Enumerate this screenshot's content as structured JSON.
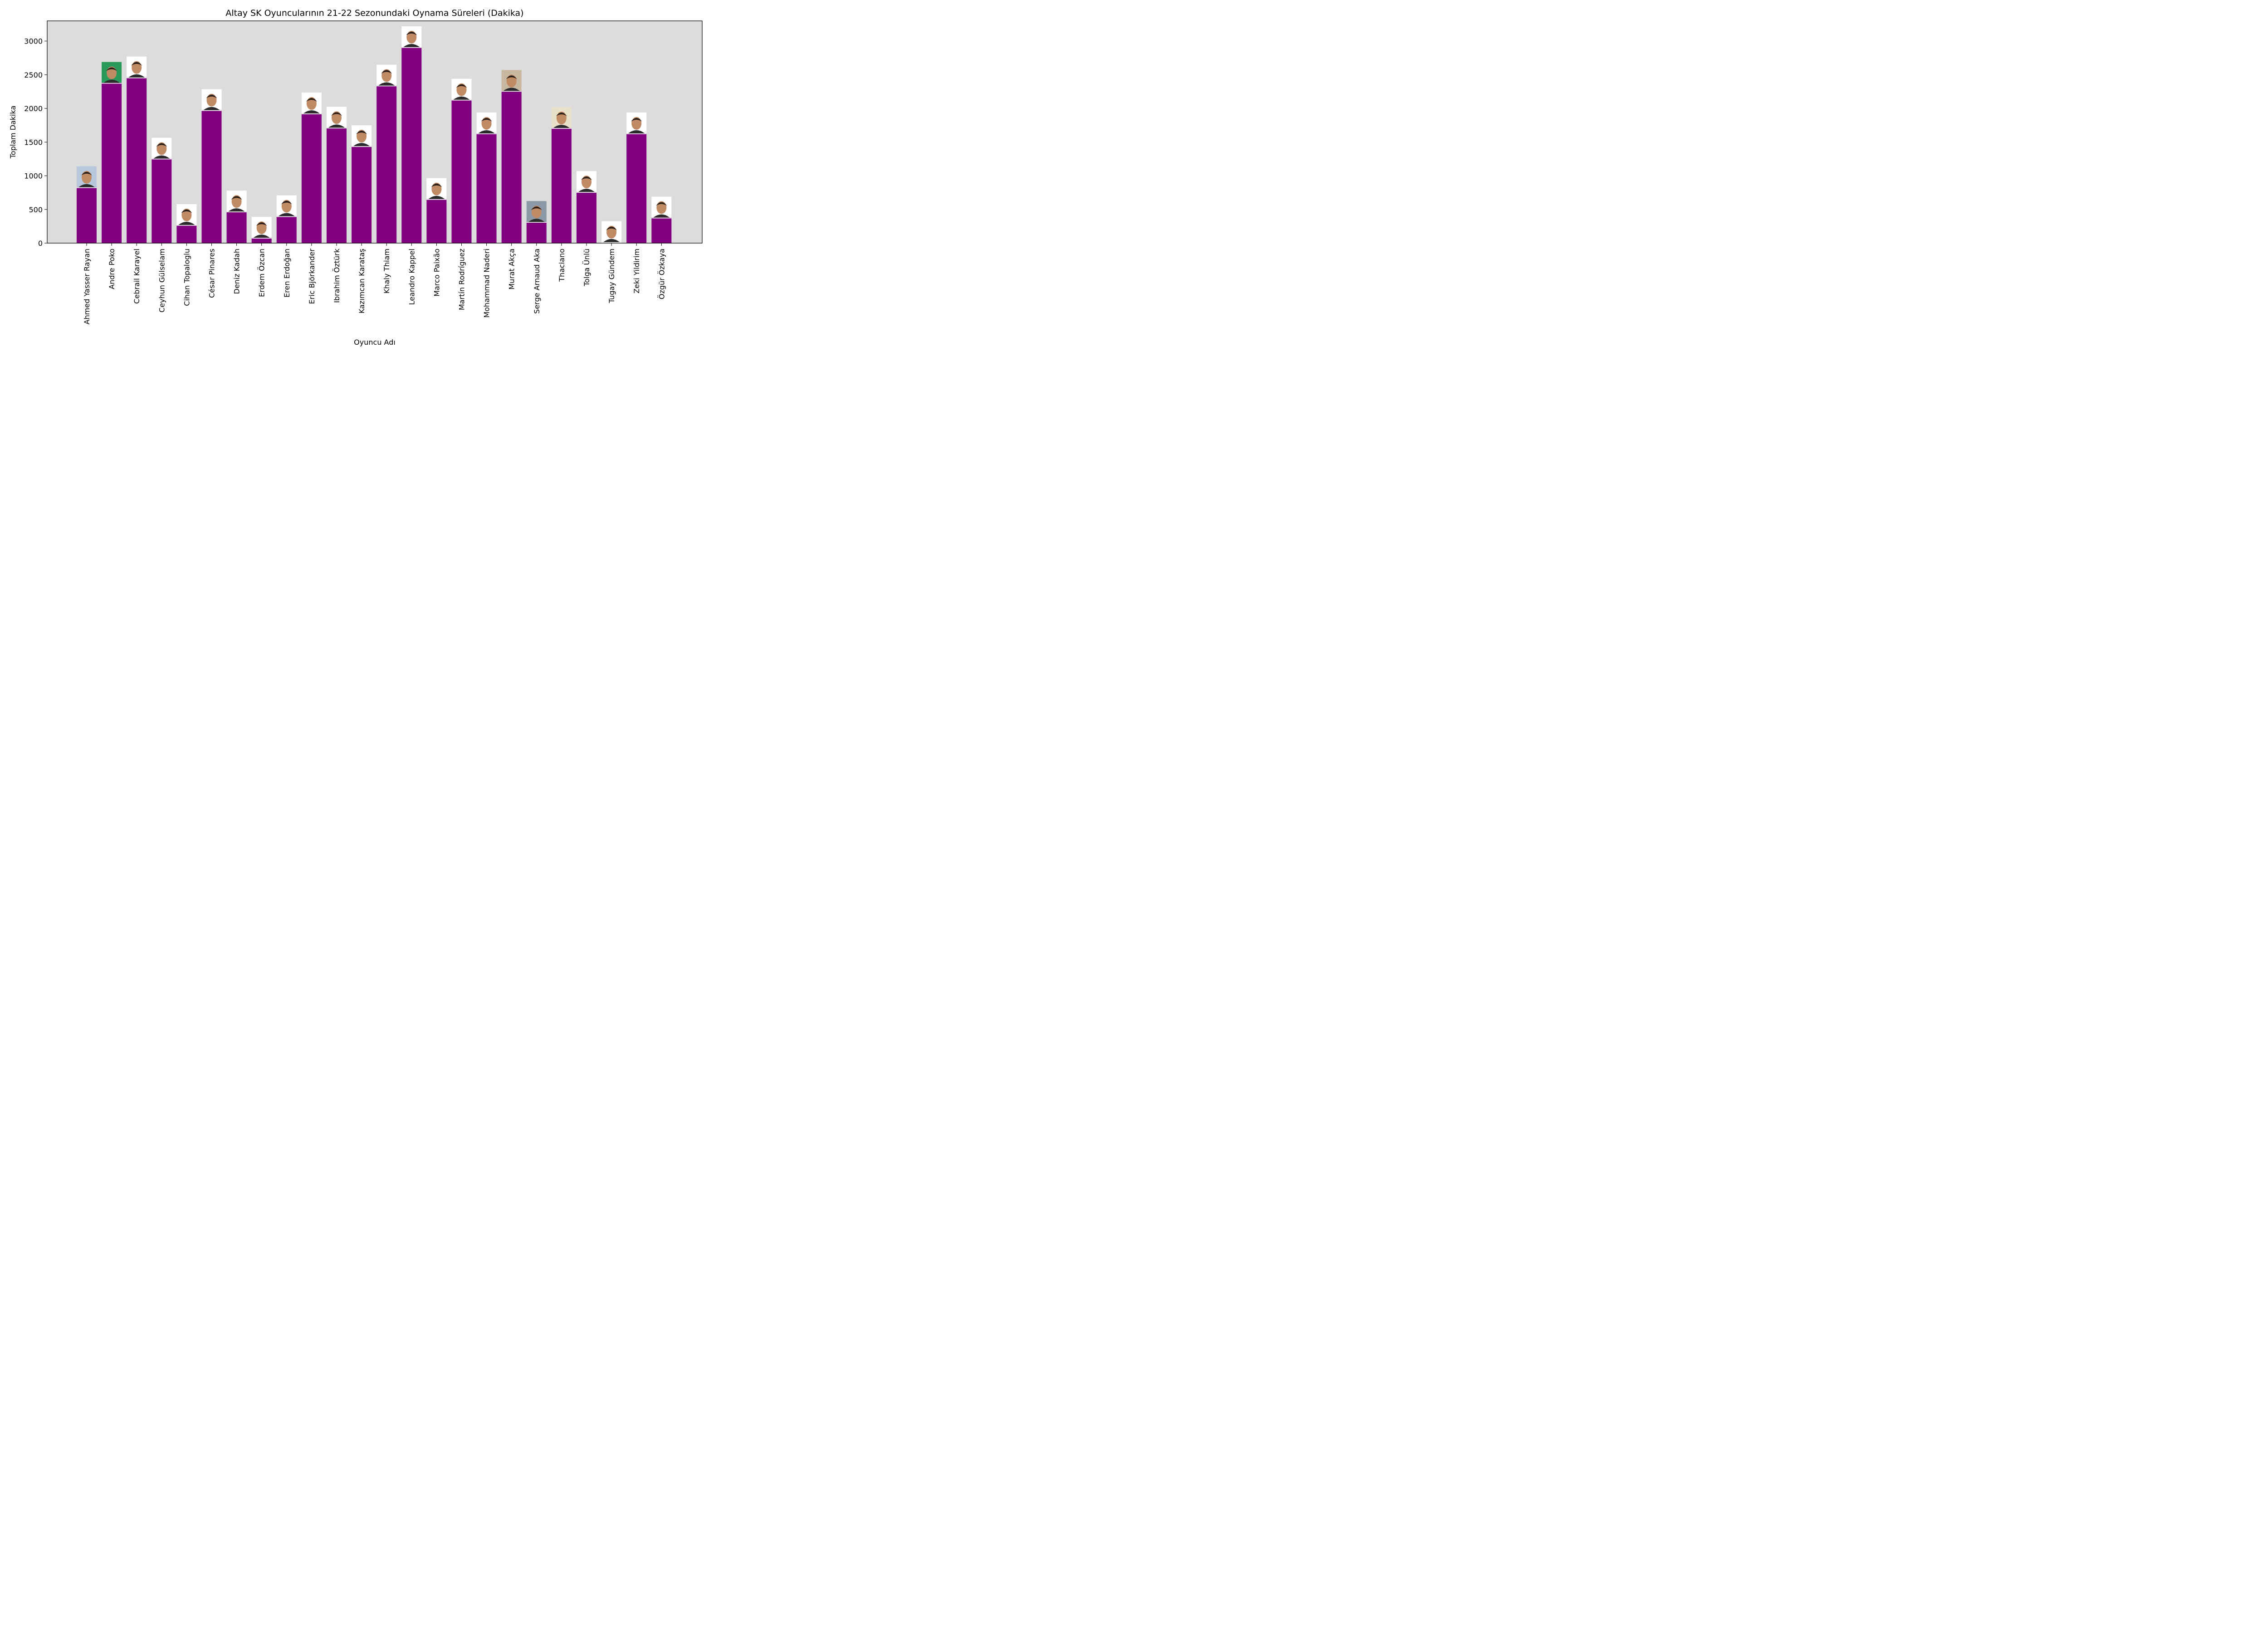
{
  "chart_data": {
    "type": "bar",
    "title": "Altay SK Oyuncularının 21-22 Sezonundaki Oynama Süreleri (Dakika)",
    "xlabel": "Oyuncu Adı",
    "ylabel": "Toplam Dakika",
    "ylim": [
      0,
      3300
    ],
    "yticks": [
      0,
      500,
      1000,
      1500,
      2000,
      2500,
      3000
    ],
    "grid": false,
    "colors": {
      "bar": "#800080",
      "plot_background": "#dcdcdc"
    },
    "categories": [
      "Ahmed Yasser Rayan",
      "Andre Poko",
      "Cebrail Karayel",
      "Ceyhun Gülselam",
      "Cihan Topaloglu",
      "César Pinares",
      "Deniz Kadah",
      "Erdem Özcan",
      "Eren Erdoğan",
      "Eric Björkander",
      "Ibrahim Öztürk",
      "Kazımcan Karataş",
      "Khaly Thiam",
      "Leandro Kappel",
      "Marco Paixão",
      "Martín Rodríguez",
      "Mohammad Naderi",
      "Murat Akça",
      "Serge Arnaud Aka",
      "Thaciano",
      "Tolga Ünlü",
      "Tugay Gündem",
      "Zeki Yildirim",
      "Özgür Özkaya"
    ],
    "values": [
      830,
      2380,
      2460,
      1255,
      270,
      1975,
      470,
      80,
      400,
      1925,
      1715,
      1440,
      2340,
      2910,
      655,
      2130,
      1630,
      2260,
      315,
      1710,
      760,
      15,
      1630,
      380
    ],
    "photo_backgrounds": [
      "#b8c8dc",
      "#2a9a5a",
      "#ffffff",
      "#ffffff",
      "#ffffff",
      "#ffffff",
      "#ffffff",
      "#ffffff",
      "#ffffff",
      "#ffffff",
      "#ffffff",
      "#ffffff",
      "#ffffff",
      "#ffffff",
      "#ffffff",
      "#ffffff",
      "#ffffff",
      "#c8b8a0",
      "#8a98a8",
      "#e8e0c8",
      "#ffffff",
      "#ffffff",
      "#ffffff",
      "#ffffff"
    ],
    "bar_annotation": "player-photo"
  }
}
